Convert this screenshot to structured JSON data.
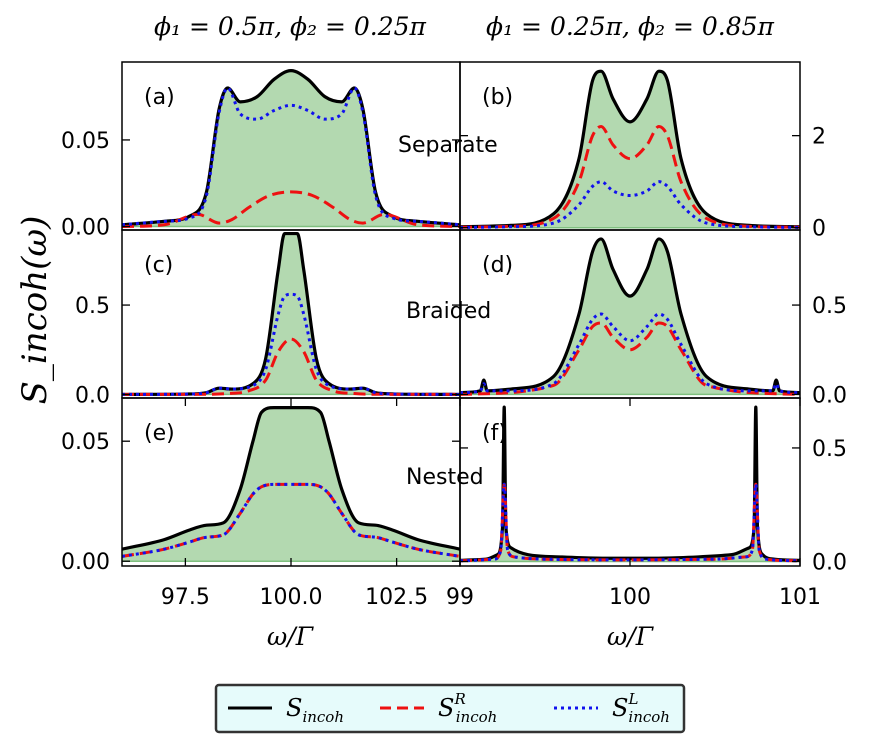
{
  "column_titles": [
    "ϕ₁ = 0.5π, ϕ₂ = 0.25π",
    "ϕ₁ = 0.25π, ϕ₂ = 0.85π"
  ],
  "ylabel": "S_incoh(ω)",
  "xlabel": "ω/Γ",
  "colors": {
    "total": "#000000",
    "right": "#ee1111",
    "left": "#1111ee",
    "fill": "#b3d9b0",
    "fill_edge": "#7fbf7f",
    "legend_bg": "#e6fbfb"
  },
  "legend": [
    {
      "key": "total",
      "base": "S",
      "sub": "incoh",
      "sup": "",
      "text": "S_incoh"
    },
    {
      "key": "right",
      "base": "S",
      "sub": "incoh",
      "sup": "R",
      "text": "S^R_incoh"
    },
    {
      "key": "left",
      "base": "S",
      "sub": "incoh",
      "sup": "L",
      "text": "S^L_incoh"
    }
  ],
  "chart_data": [
    {
      "id": "a",
      "label": "(a)",
      "annotation": "Separate",
      "type": "line",
      "xlim": [
        96,
        104
      ],
      "ylim": [
        -0.002,
        0.095
      ],
      "xticks": [],
      "yticks": [
        0,
        0.05
      ],
      "ytick_labels": [
        "0.00",
        "0.05"
      ],
      "yaxis_side": "left",
      "series": {
        "total": {
          "x": [
            96,
            97,
            97.6,
            98,
            98.3,
            98.5,
            98.8,
            99.2,
            99.6,
            100,
            100.4,
            100.8,
            101.2,
            101.5,
            101.7,
            102,
            102.4,
            103,
            104
          ],
          "y": [
            0.001,
            0.003,
            0.006,
            0.02,
            0.068,
            0.08,
            0.072,
            0.075,
            0.085,
            0.09,
            0.085,
            0.075,
            0.072,
            0.08,
            0.068,
            0.02,
            0.006,
            0.003,
            0.001
          ]
        },
        "right": {
          "x": [
            96,
            97,
            97.8,
            98.3,
            98.6,
            99,
            99.5,
            100,
            100.5,
            101,
            101.4,
            101.7,
            102.2,
            103,
            104
          ],
          "y": [
            0,
            0.001,
            0.007,
            0.002,
            0.004,
            0.011,
            0.018,
            0.02,
            0.018,
            0.011,
            0.004,
            0.002,
            0.007,
            0.001,
            0
          ]
        },
        "left": {
          "x": [
            96,
            97,
            97.6,
            98,
            98.3,
            98.5,
            98.8,
            99.2,
            99.6,
            100,
            100.4,
            100.8,
            101.2,
            101.5,
            101.7,
            102,
            102.4,
            103,
            104
          ],
          "y": [
            0.001,
            0.003,
            0.005,
            0.018,
            0.066,
            0.08,
            0.065,
            0.062,
            0.067,
            0.07,
            0.067,
            0.062,
            0.065,
            0.08,
            0.066,
            0.018,
            0.005,
            0.003,
            0.001
          ]
        }
      }
    },
    {
      "id": "b",
      "label": "(b)",
      "annotation": "",
      "type": "line",
      "xlim": [
        99,
        101
      ],
      "ylim": [
        -0.05,
        3.6
      ],
      "xticks": [],
      "yticks": [
        0,
        2
      ],
      "ytick_labels": [
        "0",
        "2"
      ],
      "yaxis_side": "right",
      "series": {
        "total": {
          "x": [
            99,
            99.3,
            99.55,
            99.7,
            99.78,
            99.83,
            99.9,
            100,
            100.1,
            100.17,
            100.22,
            100.3,
            100.45,
            100.7,
            101
          ],
          "y": [
            0.02,
            0.05,
            0.3,
            1.5,
            3.2,
            3.4,
            2.8,
            2.3,
            2.8,
            3.4,
            3.2,
            1.5,
            0.3,
            0.05,
            0.02
          ]
        },
        "right": {
          "x": [
            99,
            99.3,
            99.55,
            99.7,
            99.78,
            99.83,
            99.9,
            100,
            100.1,
            100.17,
            100.22,
            100.3,
            100.45,
            100.7,
            101
          ],
          "y": [
            0.01,
            0.03,
            0.2,
            1.0,
            2.0,
            2.2,
            1.8,
            1.5,
            1.8,
            2.2,
            2.0,
            1.0,
            0.2,
            0.03,
            0.01
          ]
        },
        "left": {
          "x": [
            99,
            99.3,
            99.55,
            99.7,
            99.78,
            99.83,
            99.9,
            100,
            100.1,
            100.17,
            100.22,
            100.3,
            100.45,
            100.7,
            101
          ],
          "y": [
            0.005,
            0.02,
            0.1,
            0.5,
            0.9,
            1.0,
            0.8,
            0.7,
            0.8,
            1.0,
            0.9,
            0.5,
            0.1,
            0.02,
            0.005
          ]
        }
      }
    },
    {
      "id": "c",
      "label": "(c)",
      "annotation": "Braided",
      "type": "line",
      "xlim": [
        96,
        104
      ],
      "ylim": [
        -0.02,
        0.92
      ],
      "xticks": [],
      "yticks": [
        0,
        0.5
      ],
      "ytick_labels": [
        "0.0",
        "0.5"
      ],
      "yaxis_side": "left",
      "series": {
        "total": {
          "x": [
            96,
            97.5,
            98,
            98.3,
            98.6,
            99.1,
            99.4,
            99.7,
            99.85,
            100.15,
            100.3,
            100.6,
            100.9,
            101.4,
            101.7,
            102,
            102.5,
            104
          ],
          "y": [
            0,
            0.002,
            0.01,
            0.035,
            0.03,
            0.06,
            0.2,
            0.7,
            0.9,
            0.9,
            0.7,
            0.2,
            0.06,
            0.03,
            0.035,
            0.01,
            0.002,
            0
          ]
        },
        "right": {
          "x": [
            96,
            98,
            98.5,
            99,
            99.4,
            99.7,
            100,
            100.3,
            100.6,
            101,
            101.5,
            102,
            104
          ],
          "y": [
            0,
            0.001,
            0.005,
            0.02,
            0.08,
            0.24,
            0.31,
            0.24,
            0.08,
            0.02,
            0.005,
            0.001,
            0
          ]
        },
        "left": {
          "x": [
            96,
            97.5,
            98,
            98.3,
            98.6,
            99.1,
            99.4,
            99.7,
            99.85,
            100,
            100.15,
            100.3,
            100.6,
            100.9,
            101.4,
            101.7,
            102,
            102.5,
            104
          ],
          "y": [
            0,
            0.002,
            0.01,
            0.035,
            0.03,
            0.05,
            0.14,
            0.45,
            0.55,
            0.56,
            0.55,
            0.45,
            0.14,
            0.05,
            0.03,
            0.035,
            0.01,
            0.002,
            0
          ]
        }
      }
    },
    {
      "id": "d",
      "label": "(d)",
      "annotation": "",
      "type": "line",
      "xlim": [
        99,
        101
      ],
      "ylim": [
        -0.02,
        0.92
      ],
      "xticks": [],
      "yticks": [
        0,
        0.5
      ],
      "ytick_labels": [
        "0.0",
        "0.5"
      ],
      "yaxis_side": "right",
      "series": {
        "total": {
          "x": [
            99,
            99.12,
            99.14,
            99.16,
            99.3,
            99.55,
            99.7,
            99.78,
            99.83,
            99.9,
            100,
            100.1,
            100.17,
            100.22,
            100.3,
            100.45,
            100.7,
            100.84,
            100.86,
            100.88,
            101
          ],
          "y": [
            0.01,
            0.02,
            0.08,
            0.02,
            0.03,
            0.1,
            0.45,
            0.8,
            0.87,
            0.7,
            0.55,
            0.7,
            0.87,
            0.8,
            0.45,
            0.1,
            0.03,
            0.02,
            0.08,
            0.02,
            0.01
          ]
        },
        "right": {
          "x": [
            99,
            99.55,
            99.7,
            99.78,
            99.83,
            99.9,
            100,
            100.1,
            100.17,
            100.22,
            100.3,
            100.45,
            101
          ],
          "y": [
            0,
            0.05,
            0.25,
            0.38,
            0.4,
            0.32,
            0.25,
            0.32,
            0.4,
            0.38,
            0.25,
            0.05,
            0
          ]
        },
        "left": {
          "x": [
            99,
            99.12,
            99.14,
            99.16,
            99.3,
            99.55,
            99.7,
            99.78,
            99.83,
            99.9,
            100,
            100.1,
            100.17,
            100.22,
            100.3,
            100.45,
            100.7,
            100.84,
            100.86,
            100.88,
            101
          ],
          "y": [
            0.01,
            0.02,
            0.06,
            0.02,
            0.02,
            0.06,
            0.28,
            0.42,
            0.45,
            0.38,
            0.3,
            0.38,
            0.45,
            0.42,
            0.28,
            0.06,
            0.02,
            0.02,
            0.06,
            0.02,
            0.01
          ]
        }
      }
    },
    {
      "id": "e",
      "label": "(e)",
      "annotation": "Nested",
      "type": "line",
      "xlim": [
        96,
        104
      ],
      "ylim": [
        -0.002,
        0.068
      ],
      "xticks": [
        97.5,
        100,
        102.5
      ],
      "xtick_labels": [
        "97.5",
        "100.0",
        "102.5"
      ],
      "yticks": [
        0,
        0.05
      ],
      "ytick_labels": [
        "0.00",
        "0.05"
      ],
      "yaxis_side": "left",
      "series": {
        "total": {
          "x": [
            96,
            97,
            97.6,
            98,
            98.4,
            98.8,
            99.1,
            99.3,
            99.6,
            100,
            100.4,
            100.7,
            100.9,
            101.2,
            101.6,
            102,
            102.4,
            103,
            104
          ],
          "y": [
            0.005,
            0.009,
            0.013,
            0.015,
            0.016,
            0.03,
            0.05,
            0.062,
            0.064,
            0.064,
            0.064,
            0.062,
            0.05,
            0.03,
            0.016,
            0.015,
            0.013,
            0.009,
            0.005
          ]
        },
        "right": {
          "x": [
            96,
            97,
            97.6,
            98,
            98.4,
            98.8,
            99.1,
            99.3,
            99.6,
            100,
            100.4,
            100.7,
            100.9,
            101.2,
            101.6,
            102,
            102.4,
            103,
            104
          ],
          "y": [
            0.002,
            0.005,
            0.008,
            0.01,
            0.011,
            0.02,
            0.028,
            0.031,
            0.032,
            0.032,
            0.032,
            0.031,
            0.028,
            0.02,
            0.011,
            0.01,
            0.008,
            0.005,
            0.002
          ]
        },
        "left": {
          "x": [
            96,
            97,
            97.6,
            98,
            98.4,
            98.8,
            99.1,
            99.3,
            99.6,
            100,
            100.4,
            100.7,
            100.9,
            101.2,
            101.6,
            102,
            102.4,
            103,
            104
          ],
          "y": [
            0.002,
            0.005,
            0.008,
            0.01,
            0.011,
            0.02,
            0.028,
            0.031,
            0.032,
            0.032,
            0.032,
            0.031,
            0.028,
            0.02,
            0.011,
            0.01,
            0.008,
            0.005,
            0.002
          ]
        }
      }
    },
    {
      "id": "f",
      "label": "(f)",
      "annotation": "",
      "type": "line",
      "xlim": [
        99,
        101
      ],
      "ylim": [
        -0.02,
        0.72
      ],
      "xticks": [
        99,
        100,
        101
      ],
      "xtick_labels": [
        "99",
        "100",
        "101"
      ],
      "yticks": [
        0,
        0.5
      ],
      "ytick_labels": [
        "0.0",
        "0.5"
      ],
      "yaxis_side": "right",
      "series": {
        "total": {
          "x": [
            99,
            99.15,
            99.22,
            99.25,
            99.26,
            99.27,
            99.3,
            99.4,
            99.6,
            99.8,
            100,
            100.2,
            100.4,
            100.6,
            100.7,
            100.73,
            100.74,
            100.75,
            100.78,
            100.85,
            101
          ],
          "y": [
            0.005,
            0.01,
            0.03,
            0.15,
            0.68,
            0.15,
            0.06,
            0.03,
            0.02,
            0.015,
            0.014,
            0.015,
            0.02,
            0.03,
            0.06,
            0.15,
            0.68,
            0.15,
            0.03,
            0.01,
            0.005
          ]
        },
        "right": {
          "x": [
            99,
            99.2,
            99.24,
            99.26,
            99.28,
            99.32,
            99.5,
            100,
            100.5,
            100.68,
            100.72,
            100.74,
            100.76,
            100.8,
            101
          ],
          "y": [
            0.003,
            0.01,
            0.05,
            0.34,
            0.05,
            0.02,
            0.01,
            0.007,
            0.01,
            0.02,
            0.05,
            0.34,
            0.05,
            0.01,
            0.003
          ]
        },
        "left": {
          "x": [
            99,
            99.2,
            99.24,
            99.26,
            99.28,
            99.32,
            99.5,
            100,
            100.5,
            100.68,
            100.72,
            100.74,
            100.76,
            100.8,
            101
          ],
          "y": [
            0.003,
            0.01,
            0.05,
            0.34,
            0.05,
            0.02,
            0.01,
            0.007,
            0.01,
            0.02,
            0.05,
            0.34,
            0.05,
            0.01,
            0.003
          ]
        }
      }
    }
  ]
}
